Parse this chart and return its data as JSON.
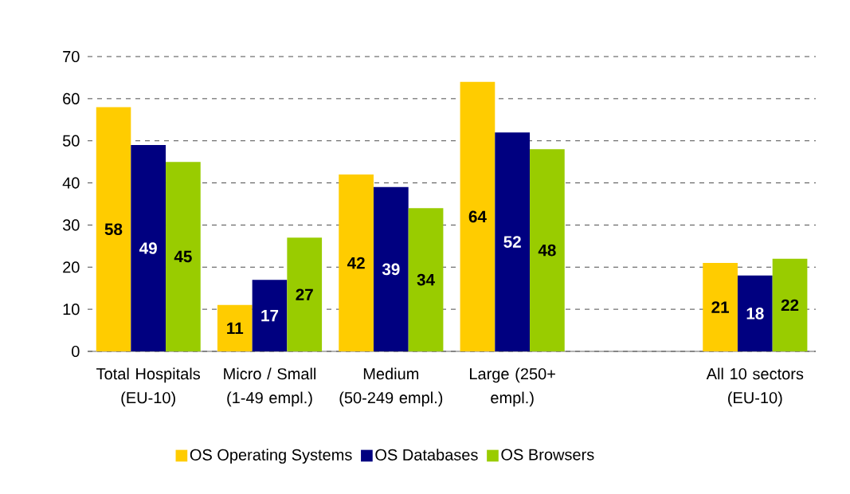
{
  "chart_data": {
    "type": "bar",
    "categories": [
      "Total Hospitals (EU-10)",
      "Micro / Small (1-49 empl.)",
      "Medium (50-249 empl.)",
      "Large (250+ empl.)",
      null,
      "All 10 sectors (EU-10)"
    ],
    "series": [
      {
        "name": "OS Operating Systems",
        "color": "#ffcc00",
        "values": [
          58,
          11,
          42,
          64,
          null,
          21
        ]
      },
      {
        "name": "OS Databases",
        "color": "#000080",
        "values": [
          49,
          17,
          39,
          52,
          null,
          18
        ]
      },
      {
        "name": "OS Browsers",
        "color": "#99cc00",
        "values": [
          45,
          27,
          34,
          48,
          null,
          22
        ]
      }
    ],
    "ylim": [
      0,
      70
    ],
    "yticks": [
      0,
      10,
      20,
      30,
      40,
      50,
      60,
      70
    ],
    "grid": "y",
    "legend": "bottom",
    "data_labels": true
  }
}
